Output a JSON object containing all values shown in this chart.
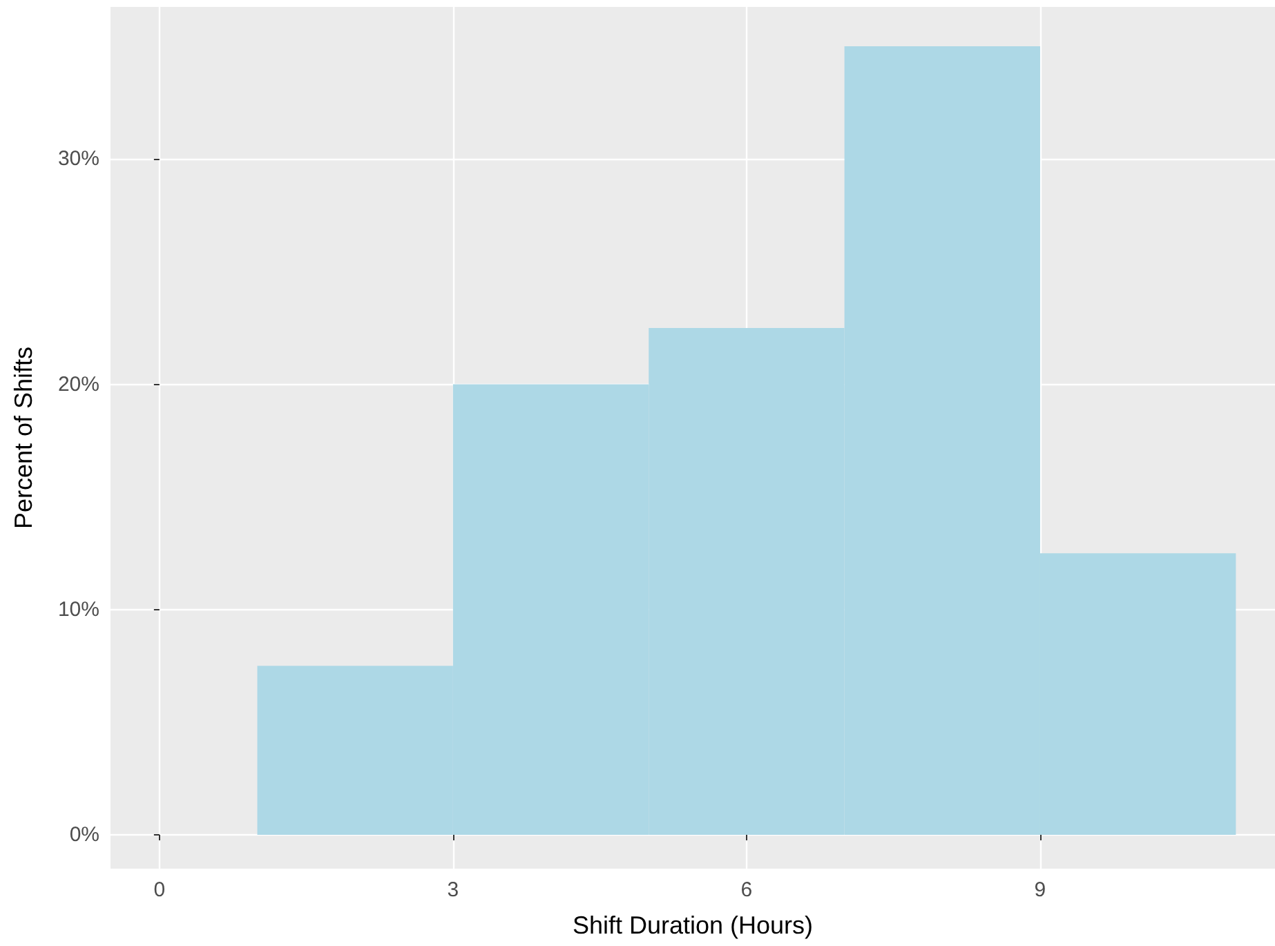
{
  "chart_data": {
    "type": "histogram",
    "xlabel": "Shift Duration (Hours)",
    "ylabel": "Percent of Shifts",
    "bins": [
      1,
      3,
      5,
      7,
      9,
      11
    ],
    "values": [
      7.5,
      20,
      22.5,
      35,
      12.5
    ],
    "color": "#add8e6",
    "xlim": [
      -0.5,
      11.4
    ],
    "xticks": [
      0,
      3,
      6,
      9
    ],
    "ylim": [
      -1.5,
      36.75
    ],
    "yticks": [
      {
        "value": 0,
        "label": "0%"
      },
      {
        "value": 10,
        "label": "10%"
      },
      {
        "value": 20,
        "label": "20%"
      },
      {
        "value": 30,
        "label": "30%"
      }
    ],
    "grid": true
  }
}
